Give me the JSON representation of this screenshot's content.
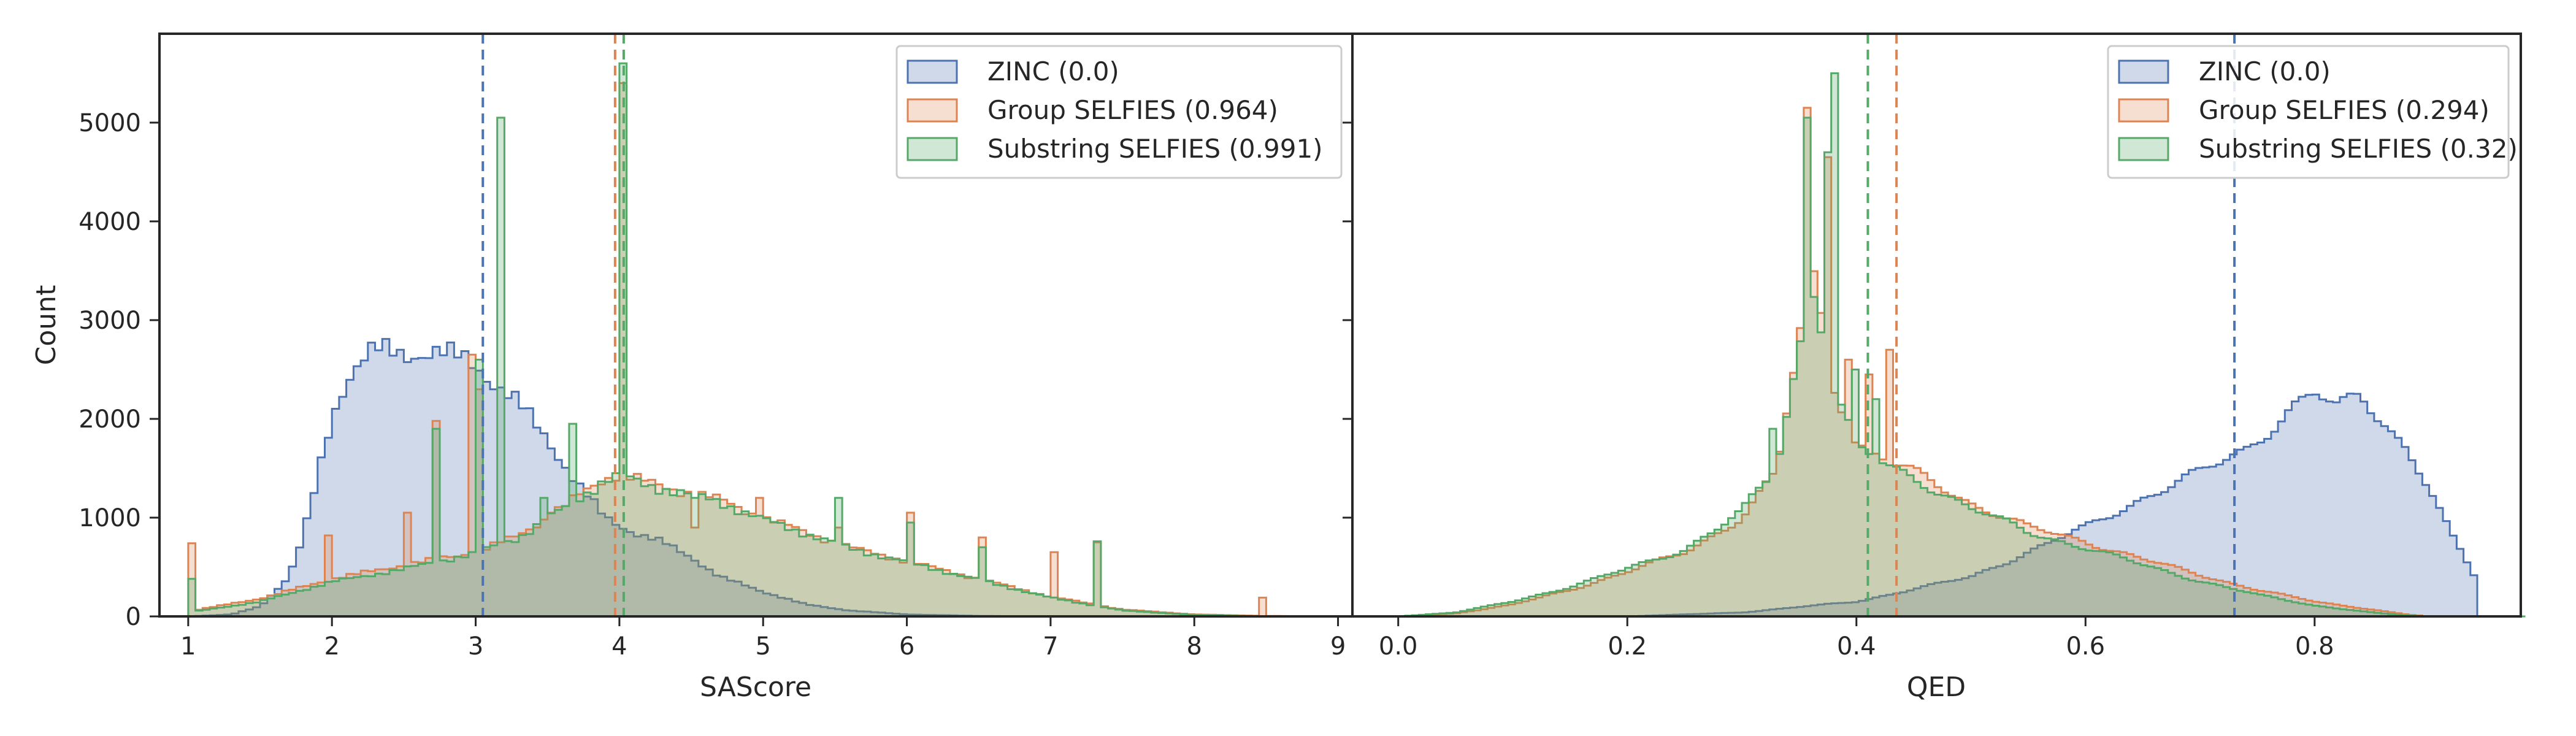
{
  "chart_data": [
    {
      "type": "histogram",
      "xlabel": "SAScore",
      "ylabel": "Count",
      "xlim": [
        0.8,
        9.1
      ],
      "ylim": [
        0,
        5900
      ],
      "xticks": [
        1,
        2,
        3,
        4,
        5,
        6,
        7,
        8,
        9
      ],
      "yticks": [
        0,
        1000,
        2000,
        3000,
        4000,
        5000
      ],
      "grid": false,
      "legend_position": "top-right",
      "bin_start": 1.0,
      "bin_width": 0.05,
      "series": [
        {
          "name": "ZINC (0.0)",
          "color": "#4c72b0",
          "mean": 3.05,
          "profile": [
            [
              1.0,
              0
            ],
            [
              1.3,
              20
            ],
            [
              1.5,
              100
            ],
            [
              1.7,
              400
            ],
            [
              1.8,
              800
            ],
            [
              1.9,
              1400
            ],
            [
              2.0,
              2000
            ],
            [
              2.1,
              2400
            ],
            [
              2.2,
              2600
            ],
            [
              2.3,
              2700
            ],
            [
              2.5,
              2650
            ],
            [
              2.7,
              2680
            ],
            [
              2.9,
              2620
            ],
            [
              3.0,
              2550
            ],
            [
              3.1,
              2400
            ],
            [
              3.3,
              2150
            ],
            [
              3.5,
              1800
            ],
            [
              3.7,
              1350
            ],
            [
              3.9,
              1000
            ],
            [
              4.1,
              850
            ],
            [
              4.3,
              750
            ],
            [
              4.5,
              600
            ],
            [
              4.7,
              400
            ],
            [
              5.0,
              250
            ],
            [
              5.3,
              120
            ],
            [
              5.6,
              60
            ],
            [
              6.0,
              20
            ],
            [
              6.5,
              5
            ],
            [
              7.0,
              0
            ],
            [
              9.0,
              0
            ]
          ],
          "spikes": []
        },
        {
          "name": "Group SELFIES (0.964)",
          "color": "#dd8452",
          "mean": 3.97,
          "profile": [
            [
              1.0,
              50
            ],
            [
              1.5,
              180
            ],
            [
              2.0,
              380
            ],
            [
              2.5,
              520
            ],
            [
              3.0,
              650
            ],
            [
              3.3,
              820
            ],
            [
              3.6,
              1100
            ],
            [
              3.9,
              1400
            ],
            [
              4.0,
              1450
            ],
            [
              4.2,
              1350
            ],
            [
              4.5,
              1250
            ],
            [
              4.7,
              1180
            ],
            [
              5.0,
              1000
            ],
            [
              5.3,
              850
            ],
            [
              5.6,
              700
            ],
            [
              6.0,
              560
            ],
            [
              6.5,
              380
            ],
            [
              7.0,
              200
            ],
            [
              7.5,
              70
            ],
            [
              8.0,
              20
            ],
            [
              8.5,
              5
            ],
            [
              9.0,
              0
            ]
          ],
          "spikes": [
            [
              1.02,
              740
            ],
            [
              1.98,
              820
            ],
            [
              2.52,
              1050
            ],
            [
              2.72,
              1980
            ],
            [
              2.98,
              2650
            ],
            [
              3.02,
              2300
            ],
            [
              3.52,
              1050
            ],
            [
              4.02,
              5400
            ],
            [
              4.52,
              900
            ],
            [
              4.98,
              1200
            ],
            [
              5.52,
              900
            ],
            [
              6.02,
              1050
            ],
            [
              6.52,
              800
            ],
            [
              7.02,
              650
            ],
            [
              7.32,
              750
            ],
            [
              8.48,
              190
            ]
          ]
        },
        {
          "name": "Substring SELFIES (0.991)",
          "color": "#55a868",
          "mean": 4.03,
          "profile": [
            [
              1.0,
              40
            ],
            [
              1.5,
              150
            ],
            [
              2.0,
              350
            ],
            [
              2.5,
              480
            ],
            [
              3.0,
              640
            ],
            [
              3.3,
              800
            ],
            [
              3.6,
              1080
            ],
            [
              3.9,
              1380
            ],
            [
              4.0,
              1420
            ],
            [
              4.2,
              1330
            ],
            [
              4.5,
              1230
            ],
            [
              4.7,
              1160
            ],
            [
              5.0,
              980
            ],
            [
              5.3,
              840
            ],
            [
              5.6,
              690
            ],
            [
              6.0,
              550
            ],
            [
              6.5,
              370
            ],
            [
              7.0,
              190
            ],
            [
              7.5,
              60
            ],
            [
              8.0,
              15
            ],
            [
              8.5,
              0
            ],
            [
              9.0,
              0
            ]
          ],
          "spikes": [
            [
              1.02,
              380
            ],
            [
              2.72,
              1900
            ],
            [
              3.02,
              2600
            ],
            [
              3.17,
              5050
            ],
            [
              3.47,
              1200
            ],
            [
              3.67,
              1950
            ],
            [
              4.02,
              5600
            ],
            [
              4.52,
              1200
            ],
            [
              5.52,
              1200
            ],
            [
              6.02,
              950
            ],
            [
              6.52,
              700
            ],
            [
              7.32,
              760
            ]
          ]
        }
      ]
    },
    {
      "type": "histogram",
      "xlabel": "QED",
      "ylabel": "",
      "xlim": [
        -0.04,
        0.98
      ],
      "ylim": [
        0,
        5900
      ],
      "xticks": [
        0.0,
        0.2,
        0.4,
        0.6,
        0.8
      ],
      "xtick_labels": [
        "0.0",
        "0.2",
        "0.4",
        "0.6",
        "0.8"
      ],
      "grid": false,
      "legend_position": "top-right",
      "bin_start": 0.0,
      "bin_width": 0.006,
      "series": [
        {
          "name": "ZINC (0.0)",
          "color": "#4c72b0",
          "mean": 0.73,
          "profile": [
            [
              0.0,
              0
            ],
            [
              0.2,
              0
            ],
            [
              0.3,
              40
            ],
            [
              0.4,
              150
            ],
            [
              0.5,
              400
            ],
            [
              0.55,
              650
            ],
            [
              0.6,
              900
            ],
            [
              0.65,
              1200
            ],
            [
              0.7,
              1450
            ],
            [
              0.74,
              1700
            ],
            [
              0.78,
              2100
            ],
            [
              0.8,
              2250
            ],
            [
              0.82,
              2100
            ],
            [
              0.84,
              2250
            ],
            [
              0.86,
              2000
            ],
            [
              0.88,
              1700
            ],
            [
              0.9,
              1300
            ],
            [
              0.92,
              800
            ],
            [
              0.94,
              400
            ],
            [
              0.945,
              0
            ],
            [
              0.98,
              0
            ]
          ],
          "spikes": []
        },
        {
          "name": "Group SELFIES (0.294)",
          "color": "#dd8452",
          "mean": 0.435,
          "profile": [
            [
              0.0,
              0
            ],
            [
              0.05,
              30
            ],
            [
              0.1,
              120
            ],
            [
              0.15,
              270
            ],
            [
              0.2,
              450
            ],
            [
              0.25,
              650
            ],
            [
              0.3,
              1000
            ],
            [
              0.33,
              1450
            ],
            [
              0.35,
              2800
            ],
            [
              0.36,
              3600
            ],
            [
              0.37,
              3000
            ],
            [
              0.38,
              2400
            ],
            [
              0.4,
              1750
            ],
            [
              0.43,
              1550
            ],
            [
              0.46,
              1400
            ],
            [
              0.5,
              1150
            ],
            [
              0.55,
              900
            ],
            [
              0.6,
              760
            ],
            [
              0.65,
              580
            ],
            [
              0.7,
              420
            ],
            [
              0.75,
              270
            ],
            [
              0.8,
              150
            ],
            [
              0.85,
              70
            ],
            [
              0.88,
              20
            ],
            [
              0.9,
              0
            ],
            [
              0.98,
              0
            ]
          ],
          "spikes": [
            [
              0.357,
              5150
            ],
            [
              0.375,
              4650
            ],
            [
              0.393,
              2600
            ],
            [
              0.411,
              2450
            ],
            [
              0.429,
              2700
            ]
          ]
        },
        {
          "name": "Substring SELFIES (0.32)",
          "color": "#55a868",
          "mean": 0.41,
          "profile": [
            [
              0.0,
              0
            ],
            [
              0.05,
              40
            ],
            [
              0.1,
              150
            ],
            [
              0.15,
              300
            ],
            [
              0.2,
              480
            ],
            [
              0.25,
              680
            ],
            [
              0.3,
              1050
            ],
            [
              0.33,
              1500
            ],
            [
              0.35,
              2700
            ],
            [
              0.36,
              3500
            ],
            [
              0.37,
              2950
            ],
            [
              0.38,
              2350
            ],
            [
              0.4,
              1700
            ],
            [
              0.43,
              1500
            ],
            [
              0.46,
              1350
            ],
            [
              0.5,
              1100
            ],
            [
              0.55,
              850
            ],
            [
              0.6,
              700
            ],
            [
              0.65,
              520
            ],
            [
              0.7,
              360
            ],
            [
              0.75,
              220
            ],
            [
              0.8,
              110
            ],
            [
              0.85,
              40
            ],
            [
              0.88,
              10
            ],
            [
              0.9,
              0
            ],
            [
              0.98,
              0
            ]
          ],
          "spikes": [
            [
              0.327,
              1900
            ],
            [
              0.357,
              5050
            ],
            [
              0.375,
              4700
            ],
            [
              0.381,
              5500
            ],
            [
              0.399,
              2500
            ],
            [
              0.417,
              2200
            ]
          ]
        }
      ]
    }
  ]
}
